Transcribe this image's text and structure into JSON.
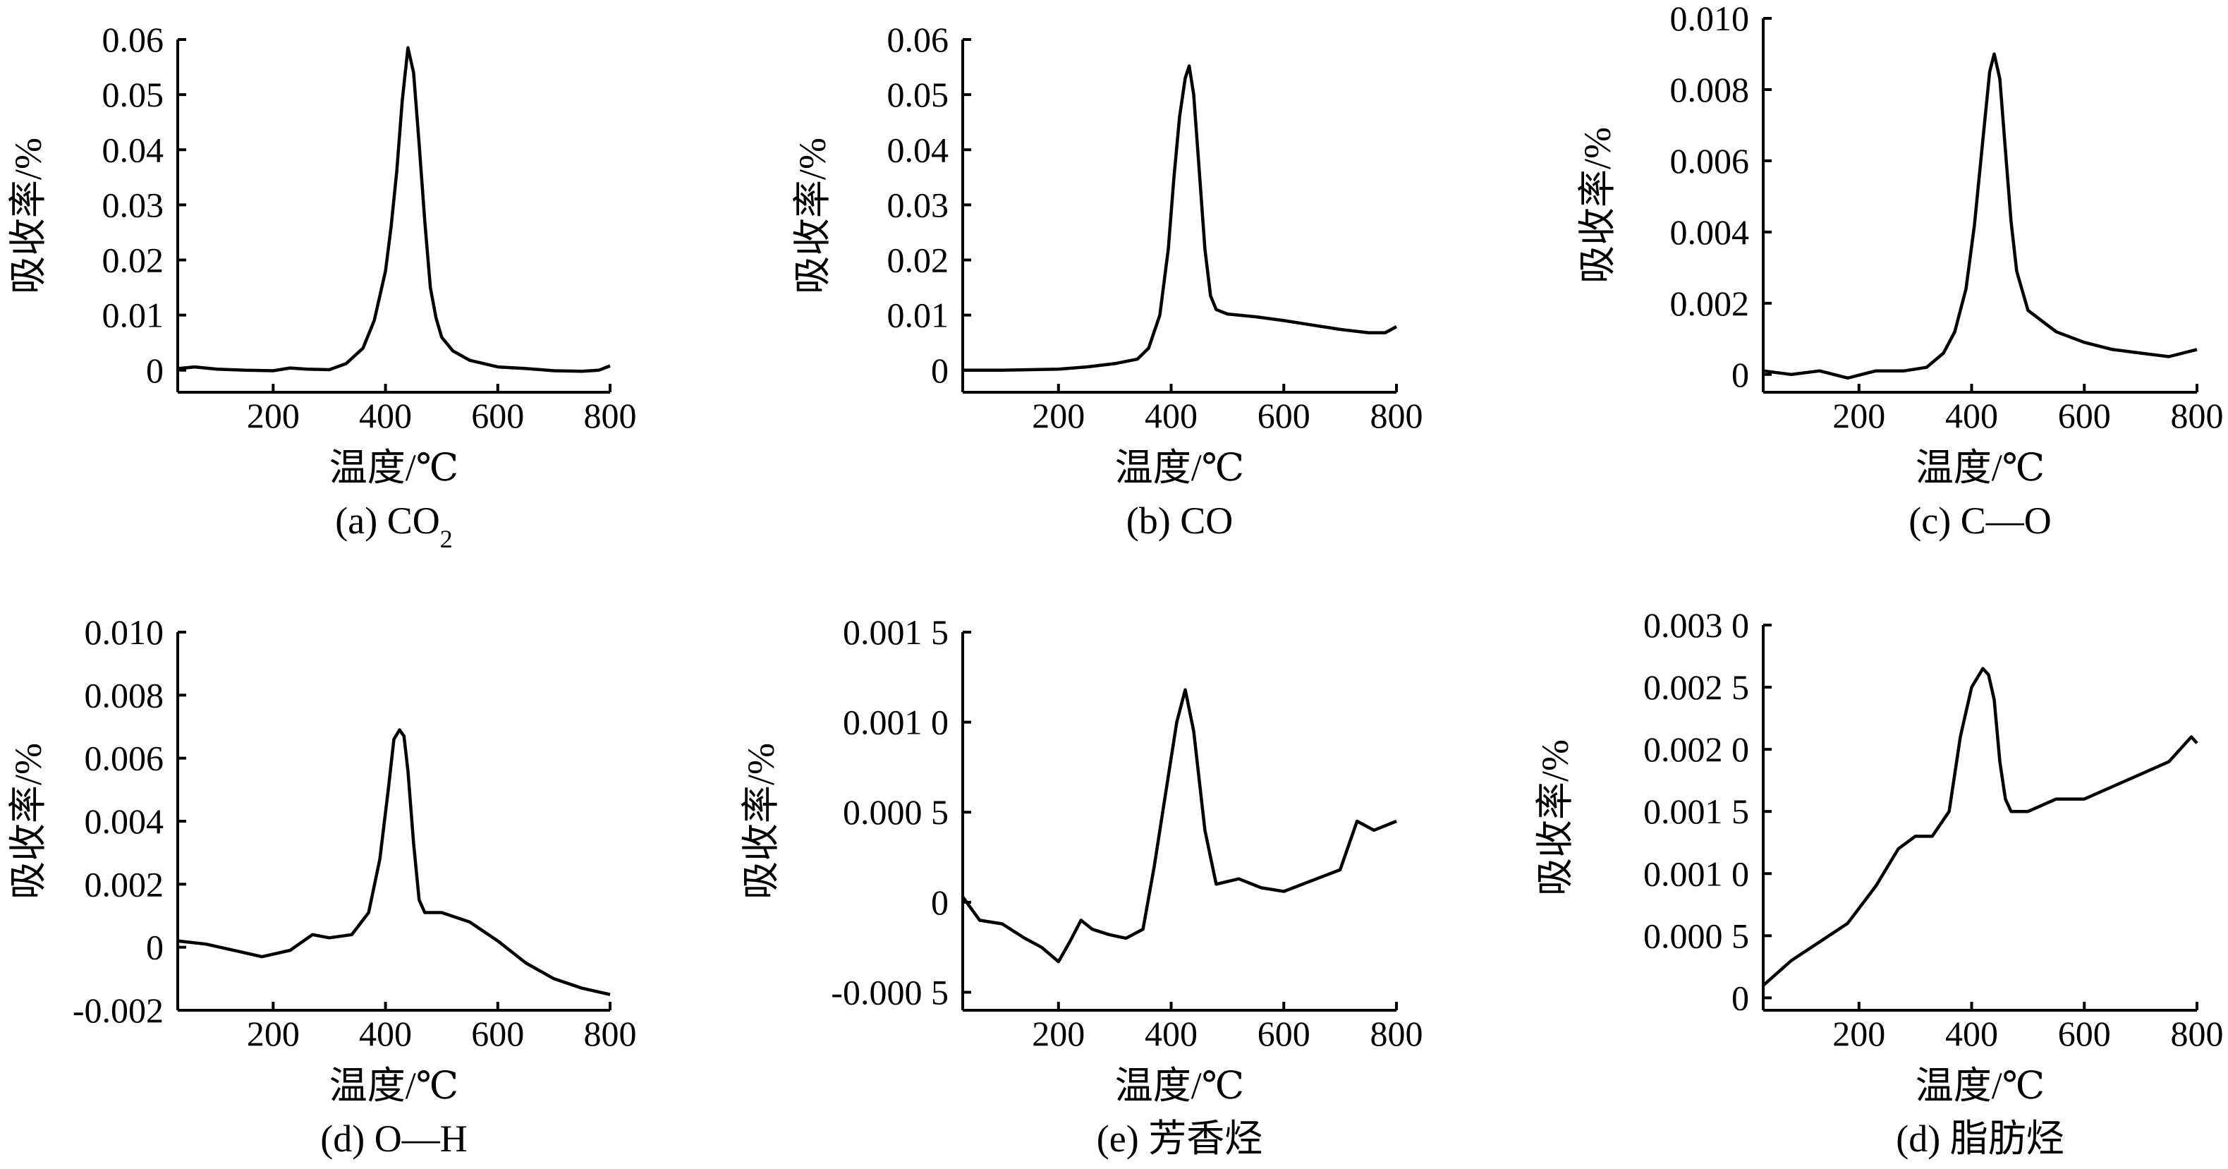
{
  "chart_data": [
    {
      "type": "line",
      "caption": "(a) CO",
      "caption_sub": "2",
      "xlabel": "温度/℃",
      "ylabel": "吸收率/%",
      "xlim": [
        30,
        800
      ],
      "ylim": [
        -0.004,
        0.06
      ],
      "xticks": [
        200,
        400,
        600,
        800
      ],
      "xtick_labels": [
        "200",
        "400",
        "600",
        "800"
      ],
      "yticks": [
        0,
        0.01,
        0.02,
        0.03,
        0.04,
        0.05,
        0.06
      ],
      "ytick_labels": [
        "0",
        "0.01",
        "0.02",
        "0.03",
        "0.04",
        "0.05",
        "0.06"
      ],
      "series": [
        {
          "x": [
            30,
            60,
            100,
            150,
            200,
            230,
            260,
            300,
            330,
            360,
            380,
            400,
            410,
            420,
            430,
            440,
            450,
            460,
            470,
            480,
            490,
            500,
            520,
            550,
            600,
            650,
            700,
            750,
            780,
            800
          ],
          "y": [
            0.0003,
            0.0006,
            0.0002,
            0,
            -0.0001,
            0.0004,
            0.0002,
            0.0001,
            0.0012,
            0.004,
            0.009,
            0.018,
            0.026,
            0.036,
            0.049,
            0.0585,
            0.054,
            0.041,
            0.027,
            0.015,
            0.0095,
            0.006,
            0.0035,
            0.0018,
            0.0006,
            0.0003,
            -0.0001,
            -0.0002,
            0,
            0.0008
          ]
        }
      ]
    },
    {
      "type": "line",
      "caption": "(b) CO",
      "xlabel": "温度/℃",
      "ylabel": "吸收率/%",
      "xlim": [
        30,
        800
      ],
      "ylim": [
        -0.004,
        0.06
      ],
      "xticks": [
        200,
        400,
        600,
        800
      ],
      "xtick_labels": [
        "200",
        "400",
        "600",
        "800"
      ],
      "yticks": [
        0,
        0.01,
        0.02,
        0.03,
        0.04,
        0.05,
        0.06
      ],
      "ytick_labels": [
        "0",
        "0.01",
        "0.02",
        "0.03",
        "0.04",
        "0.05",
        "0.06"
      ],
      "series": [
        {
          "x": [
            30,
            100,
            200,
            250,
            300,
            340,
            360,
            380,
            395,
            405,
            415,
            425,
            432,
            440,
            450,
            460,
            470,
            480,
            500,
            550,
            600,
            650,
            700,
            750,
            780,
            800
          ],
          "y": [
            0,
            0,
            0.0002,
            0.0006,
            0.0012,
            0.002,
            0.004,
            0.01,
            0.022,
            0.035,
            0.046,
            0.053,
            0.0552,
            0.05,
            0.036,
            0.022,
            0.0135,
            0.011,
            0.0102,
            0.0097,
            0.009,
            0.0082,
            0.0074,
            0.0068,
            0.0068,
            0.0079
          ]
        }
      ]
    },
    {
      "type": "line",
      "caption": "(c) C—O",
      "xlabel": "温度/℃",
      "ylabel": "吸收率/%",
      "xlim": [
        30,
        800
      ],
      "ylim": [
        -0.0005,
        0.01
      ],
      "xticks": [
        200,
        400,
        600,
        800
      ],
      "xtick_labels": [
        "200",
        "400",
        "600",
        "800"
      ],
      "yticks": [
        0,
        0.002,
        0.004,
        0.006,
        0.008,
        0.01
      ],
      "ytick_labels": [
        "0",
        "0.002",
        "0.004",
        "0.006",
        "0.008",
        "0.010"
      ],
      "series": [
        {
          "x": [
            30,
            80,
            130,
            180,
            230,
            280,
            320,
            350,
            370,
            390,
            405,
            420,
            432,
            440,
            450,
            460,
            470,
            480,
            500,
            550,
            600,
            650,
            700,
            750,
            800
          ],
          "y": [
            0.0001,
            0,
            0.0001,
            -0.0001,
            0.0001,
            0.0001,
            0.0002,
            0.0006,
            0.0012,
            0.0024,
            0.0042,
            0.0066,
            0.0085,
            0.009,
            0.0083,
            0.0063,
            0.0043,
            0.0029,
            0.0018,
            0.0012,
            0.0009,
            0.0007,
            0.0006,
            0.0005,
            0.0007
          ]
        }
      ]
    },
    {
      "type": "line",
      "caption": "(d) O—H",
      "xlabel": "温度/℃",
      "ylabel": "吸收率/%",
      "xlim": [
        30,
        800
      ],
      "ylim": [
        -0.002,
        0.01
      ],
      "xticks": [
        200,
        400,
        600,
        800
      ],
      "xtick_labels": [
        "200",
        "400",
        "600",
        "800"
      ],
      "yticks": [
        -0.002,
        0,
        0.002,
        0.004,
        0.006,
        0.008,
        0.01
      ],
      "ytick_labels": [
        "-0.002",
        "0",
        "0.002",
        "0.004",
        "0.006",
        "0.008",
        "0.010"
      ],
      "series": [
        {
          "x": [
            30,
            80,
            130,
            180,
            230,
            270,
            300,
            340,
            370,
            390,
            405,
            415,
            425,
            433,
            440,
            450,
            460,
            470,
            500,
            550,
            600,
            650,
            700,
            750,
            800
          ],
          "y": [
            0.0002,
            0.0001,
            -0.0001,
            -0.0003,
            -0.0001,
            0.0004,
            0.0003,
            0.0004,
            0.0011,
            0.0028,
            0.005,
            0.0066,
            0.0069,
            0.0067,
            0.0056,
            0.0033,
            0.0015,
            0.0011,
            0.0011,
            0.0008,
            0.0002,
            -0.0005,
            -0.001,
            -0.0013,
            -0.0015
          ]
        }
      ]
    },
    {
      "type": "line",
      "caption": "(e) 芳香烃",
      "xlabel": "温度/℃",
      "ylabel": "吸收率/%",
      "xlim": [
        30,
        800
      ],
      "ylim": [
        -0.0006,
        0.0015
      ],
      "xticks": [
        200,
        400,
        600,
        800
      ],
      "xtick_labels": [
        "200",
        "400",
        "600",
        "800"
      ],
      "yticks": [
        -0.0005,
        0,
        0.0005,
        0.001,
        0.0015
      ],
      "ytick_labels": [
        "-0.000 5",
        "0",
        "0.000 5",
        "0.001 0",
        "0.001 5"
      ],
      "series": [
        {
          "x": [
            30,
            60,
            100,
            140,
            170,
            200,
            220,
            240,
            260,
            290,
            320,
            350,
            370,
            390,
            410,
            425,
            440,
            460,
            480,
            520,
            560,
            600,
            650,
            700,
            730,
            760,
            800
          ],
          "y": [
            3e-05,
            -0.0001,
            -0.00012,
            -0.0002,
            -0.00025,
            -0.00033,
            -0.00022,
            -0.0001,
            -0.00015,
            -0.00018,
            -0.0002,
            -0.00015,
            0.0002,
            0.0006,
            0.001,
            0.00118,
            0.00095,
            0.0004,
            0.0001,
            0.00013,
            8e-05,
            6e-05,
            0.00012,
            0.00018,
            0.00045,
            0.0004,
            0.00045
          ]
        }
      ]
    },
    {
      "type": "line",
      "caption": "(d) 脂肪烃",
      "xlabel": "温度/℃",
      "ylabel": "吸收率/%",
      "xlim": [
        30,
        800
      ],
      "ylim": [
        -0.0001,
        0.003
      ],
      "xticks": [
        200,
        400,
        600,
        800
      ],
      "xtick_labels": [
        "200",
        "400",
        "600",
        "800"
      ],
      "yticks": [
        0,
        0.0005,
        0.001,
        0.0015,
        0.002,
        0.0025,
        0.003
      ],
      "ytick_labels": [
        "0",
        "0.000 5",
        "0.001 0",
        "0.001 5",
        "0.002 0",
        "0.002 5",
        "0.003 0"
      ],
      "series": [
        {
          "x": [
            30,
            80,
            130,
            180,
            230,
            270,
            300,
            330,
            360,
            380,
            400,
            420,
            430,
            440,
            450,
            460,
            470,
            500,
            550,
            600,
            650,
            700,
            750,
            790,
            800
          ],
          "y": [
            0.0001,
            0.0003,
            0.00045,
            0.0006,
            0.0009,
            0.0012,
            0.0013,
            0.0013,
            0.0015,
            0.0021,
            0.0025,
            0.00265,
            0.0026,
            0.0024,
            0.0019,
            0.0016,
            0.0015,
            0.0015,
            0.0016,
            0.0016,
            0.0017,
            0.0018,
            0.0019,
            0.0021,
            0.00205
          ]
        }
      ]
    }
  ]
}
